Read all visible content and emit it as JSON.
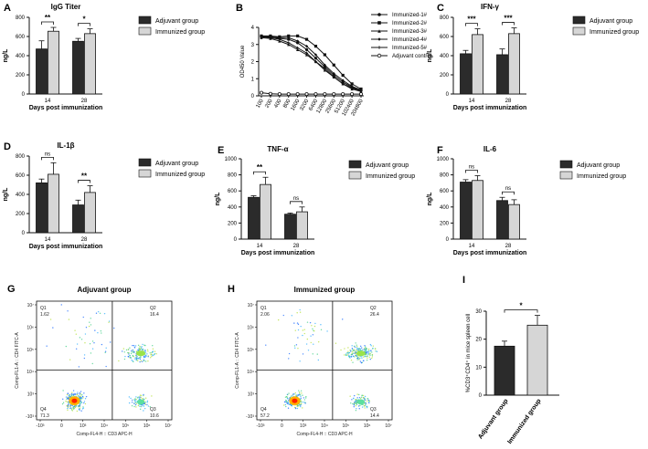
{
  "chart_data": [
    {
      "panel": "A",
      "type": "bar",
      "title": "IgG Titer",
      "categories": [
        "14",
        "28"
      ],
      "series": [
        {
          "name": "Adjuvant group",
          "values": [
            470,
            550
          ],
          "errors": [
            85,
            30
          ]
        },
        {
          "name": "Immunized group",
          "values": [
            655,
            630
          ],
          "errors": [
            40,
            50
          ]
        }
      ],
      "ylim": [
        0,
        800
      ],
      "yticks": [
        "0",
        "200",
        "400",
        "600",
        "800"
      ],
      "ylabel": "ng/L",
      "xlabel": "Days post immunization",
      "significance": [
        "**",
        "*"
      ]
    },
    {
      "panel": "B",
      "type": "line",
      "ylabel": "OD450 Value",
      "x": [
        "100",
        "200",
        "400",
        "800",
        "1600",
        "3200",
        "6400",
        "12800",
        "25600",
        "51200",
        "102400",
        "204800"
      ],
      "ylim": [
        0,
        4
      ],
      "yticks": [
        "0",
        "1",
        "2",
        "3",
        "4"
      ],
      "series": [
        {
          "name": "Immunized-1#",
          "values": [
            3.45,
            3.4,
            3.35,
            3.3,
            3.1,
            2.7,
            2.2,
            1.7,
            1.2,
            0.8,
            0.5,
            0.3
          ]
        },
        {
          "name": "Immunized-2#",
          "values": [
            3.5,
            3.5,
            3.45,
            3.5,
            3.5,
            3.3,
            2.9,
            2.4,
            1.8,
            1.2,
            0.7,
            0.4
          ]
        },
        {
          "name": "Immunized-3#",
          "values": [
            3.4,
            3.35,
            3.2,
            3.0,
            2.7,
            2.4,
            2.0,
            1.5,
            1.1,
            0.7,
            0.4,
            0.25
          ]
        },
        {
          "name": "Immunized-4#",
          "values": [
            3.5,
            3.45,
            3.4,
            3.4,
            3.2,
            2.9,
            2.4,
            1.8,
            1.3,
            0.9,
            0.55,
            0.35
          ]
        },
        {
          "name": "Immunized-5#",
          "values": [
            3.45,
            3.4,
            3.3,
            3.1,
            2.8,
            2.5,
            2.0,
            1.6,
            1.1,
            0.7,
            0.45,
            0.3
          ]
        },
        {
          "name": "Adjuvant control",
          "values": [
            0.18,
            0.12,
            0.1,
            0.1,
            0.1,
            0.1,
            0.1,
            0.1,
            0.1,
            0.1,
            0.1,
            0.1
          ]
        }
      ]
    },
    {
      "panel": "C",
      "type": "bar",
      "title": "IFN-γ",
      "categories": [
        "14",
        "28"
      ],
      "series": [
        {
          "name": "Adjuvant group",
          "values": [
            420,
            410
          ],
          "errors": [
            35,
            60
          ]
        },
        {
          "name": "Immunized group",
          "values": [
            620,
            630
          ],
          "errors": [
            60,
            60
          ]
        }
      ],
      "ylim": [
        0,
        800
      ],
      "yticks": [
        "0",
        "200",
        "400",
        "600",
        "800"
      ],
      "ylabel": "ng/L",
      "xlabel": "Days post immunization",
      "significance": [
        "***",
        "***"
      ]
    },
    {
      "panel": "D",
      "type": "bar",
      "title": "IL-1β",
      "categories": [
        "14",
        "28"
      ],
      "series": [
        {
          "name": "Adjuvant group",
          "values": [
            520,
            290
          ],
          "errors": [
            40,
            50
          ]
        },
        {
          "name": "Immunized group",
          "values": [
            610,
            420
          ],
          "errors": [
            120,
            70
          ]
        }
      ],
      "ylim": [
        0,
        800
      ],
      "yticks": [
        "0",
        "200",
        "400",
        "600",
        "800"
      ],
      "ylabel": "ng/L",
      "xlabel": "Days post immunization",
      "significance": [
        "ns",
        "**"
      ]
    },
    {
      "panel": "E",
      "type": "bar",
      "title": "TNF-α",
      "categories": [
        "14",
        "28"
      ],
      "series": [
        {
          "name": "Adjuvant group",
          "values": [
            520,
            310
          ],
          "errors": [
            20,
            15
          ]
        },
        {
          "name": "Immunized group",
          "values": [
            680,
            340
          ],
          "errors": [
            90,
            60
          ]
        }
      ],
      "ylim": [
        0,
        1000
      ],
      "yticks": [
        "0",
        "200",
        "400",
        "600",
        "800",
        "1000"
      ],
      "ylabel": "ng/L",
      "xlabel": "Days post immunization",
      "significance": [
        "**",
        "ns"
      ]
    },
    {
      "panel": "F",
      "type": "bar",
      "title": "IL-6",
      "categories": [
        "14",
        "28"
      ],
      "series": [
        {
          "name": "Adjuvant group",
          "values": [
            710,
            480
          ],
          "errors": [
            30,
            40
          ]
        },
        {
          "name": "Immunized group",
          "values": [
            730,
            430
          ],
          "errors": [
            60,
            60
          ]
        }
      ],
      "ylim": [
        0,
        1000
      ],
      "yticks": [
        "0",
        "200",
        "400",
        "600",
        "800",
        "1000"
      ],
      "ylabel": "ng/L",
      "xlabel": "Days post immunization",
      "significance": [
        "ns",
        "ns"
      ]
    },
    {
      "panel": "G",
      "type": "scatter",
      "title": "Adjuvant group",
      "xlabel": "Comp-FL4-H :: CD3 APC-H",
      "ylabel": "Comp-FL1-A :: CD4 FITC-A",
      "xticks": [
        "-10³",
        "0",
        "10³",
        "10⁴",
        "10⁵",
        "10⁶",
        "10⁷"
      ],
      "yticks": [
        "-10³",
        "10³",
        "10⁴",
        "10⁵",
        "10⁶",
        "10⁷"
      ],
      "quadrants": [
        {
          "name": "Q1",
          "value": "1.62"
        },
        {
          "name": "Q2",
          "value": "16.4"
        },
        {
          "name": "Q3",
          "value": "10.6"
        },
        {
          "name": "Q4",
          "value": "71.3"
        }
      ]
    },
    {
      "panel": "H",
      "type": "scatter",
      "title": "Immunized group",
      "xlabel": "Comp-FL4-H :: CD3 APC-H",
      "ylabel": "Comp-FL1-A :: CD4 FITC-A",
      "xticks": [
        "-10³",
        "0",
        "10³",
        "10⁴",
        "10⁵",
        "10⁶",
        "10⁷"
      ],
      "yticks": [
        "-10³",
        "10³",
        "10⁴",
        "10⁵",
        "10⁶",
        "10⁷"
      ],
      "quadrants": [
        {
          "name": "Q1",
          "value": "2.06"
        },
        {
          "name": "Q2",
          "value": "26.4"
        },
        {
          "name": "Q3",
          "value": "14.4"
        },
        {
          "name": "Q4",
          "value": "57.2"
        }
      ]
    },
    {
      "panel": "I",
      "type": "bar",
      "categories": [
        "Adjuvant group",
        "Immunized group"
      ],
      "values": [
        17.5,
        25
      ],
      "errors": [
        1.8,
        3.5
      ],
      "ylim": [
        0,
        30
      ],
      "yticks": [
        "0",
        "10",
        "20",
        "30"
      ],
      "ylabel": "%CD3⁺CD4⁺ in mice spleen cell",
      "significance": [
        "*"
      ]
    }
  ],
  "colors": {
    "adjuvant": "#2b2b2b",
    "immunized": "#d6d6d6",
    "axis": "#111111",
    "q4": "#ff2200",
    "cloud": "#3a8fff"
  }
}
